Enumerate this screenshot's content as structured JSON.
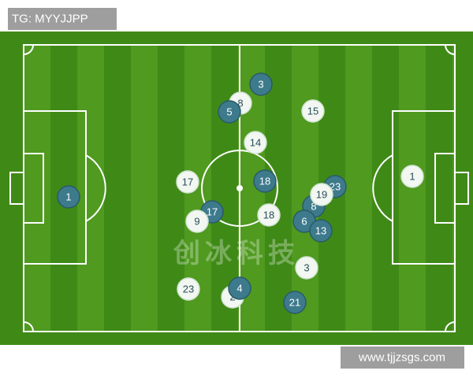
{
  "header": {
    "label": "TG: MYYJJPP"
  },
  "watermark": {
    "text": "创冰科技"
  },
  "players": [
    {
      "number": 8,
      "team": "light"
    },
    {
      "number": 3,
      "team": "dark"
    },
    {
      "number": 5,
      "team": "dark"
    },
    {
      "number": 15,
      "team": "light"
    },
    {
      "number": 14,
      "team": "light"
    },
    {
      "number": 17,
      "team": "light"
    },
    {
      "number": 18,
      "team": "dark"
    },
    {
      "number": 1,
      "team": "dark"
    },
    {
      "number": 23,
      "team": "dark"
    },
    {
      "number": 8,
      "team": "dark"
    },
    {
      "number": 19,
      "team": "light"
    },
    {
      "number": 1,
      "team": "light"
    },
    {
      "number": 17,
      "team": "dark"
    },
    {
      "number": 9,
      "team": "light"
    },
    {
      "number": 18,
      "team": "light"
    },
    {
      "number": 6,
      "team": "dark"
    },
    {
      "number": 13,
      "team": "dark"
    },
    {
      "number": 3,
      "team": "light"
    },
    {
      "number": 23,
      "team": "light"
    },
    {
      "number": 2,
      "team": "light"
    },
    {
      "number": 4,
      "team": "dark"
    },
    {
      "number": 21,
      "team": "dark"
    }
  ],
  "footer": {
    "url": "www.tjjzsgs.com"
  }
}
